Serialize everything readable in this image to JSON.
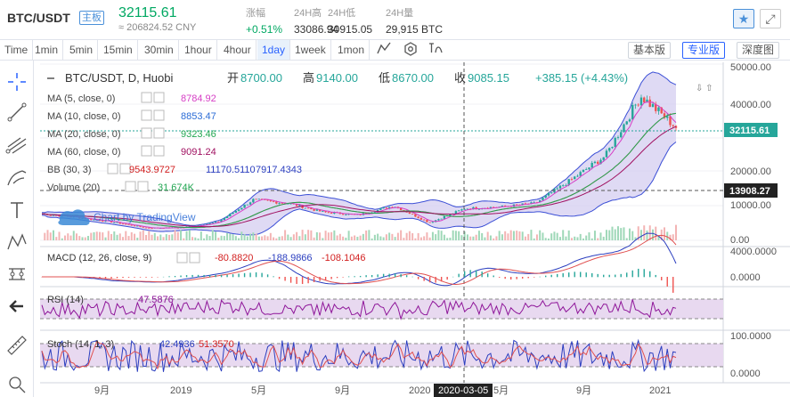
{
  "header": {
    "pair": "BTC/USDT",
    "badge": "主板",
    "price": "32115.61",
    "cny": "≈ 206824.52 CNY",
    "stats": [
      {
        "label": "涨幅",
        "value": "+0.51%"
      },
      {
        "label": "24H高",
        "value": "33086.94"
      },
      {
        "label": "24H低",
        "value": "30915.05"
      },
      {
        "label": "24H量",
        "value": "29,915 BTC"
      }
    ]
  },
  "toolbar": {
    "timeframes": [
      "Time",
      "1min",
      "5min",
      "15min",
      "30min",
      "1hour",
      "4hour",
      "1day",
      "1week",
      "1mon"
    ],
    "active_timeframe": "1day",
    "views": [
      "基本版",
      "专业版",
      "深度图"
    ],
    "active_view": "专业版"
  },
  "legend": {
    "title_sep": "BTC/USDT, D, Huobi",
    "open_label": "开",
    "open": "8700.00",
    "high_label": "高",
    "high": "9140.00",
    "low_label": "低",
    "low": "8670.00",
    "close_label": "收",
    "close": "9085.15",
    "change": "+385.15 (+4.43%)",
    "indicators": [
      {
        "name": "MA (5, close, 0)",
        "values": [
          "8784.92"
        ],
        "colors": [
          "#d63ec5"
        ]
      },
      {
        "name": "MA (10, close, 0)",
        "values": [
          "8853.47"
        ],
        "colors": [
          "#2b6cd6"
        ]
      },
      {
        "name": "MA (20, close, 0)",
        "values": [
          "9323.46"
        ],
        "colors": [
          "#21a651"
        ]
      },
      {
        "name": "MA (60, close, 0)",
        "values": [
          "9091.24"
        ],
        "colors": [
          "#a01060"
        ]
      },
      {
        "name": "BB (30, 3)",
        "values": [
          "9543.9727",
          "11170.5110",
          "7917.4343"
        ],
        "colors": [
          "#d21f1f",
          "#2b3ebf",
          "#2b3ebf"
        ]
      },
      {
        "name": "Volume (20)",
        "values": [
          "31.674K"
        ],
        "colors": [
          "#21a651"
        ]
      }
    ],
    "watermark": "Chart by TradingView",
    "macd": {
      "name": "MACD (12, 26, close, 9)",
      "values": [
        "-80.8820",
        "-188.9866",
        "-108.1046"
      ]
    },
    "rsi": {
      "name": "RSI (14)",
      "value": "47.5876"
    },
    "stoch": {
      "name": "Stoch (14, 1, 3)",
      "values": [
        "42.4936",
        "51.3570"
      ]
    }
  },
  "price_axis": {
    "main": [
      "50000.00",
      "40000.00",
      "30000.00",
      "20000.00",
      "10000.00",
      "0.00"
    ],
    "current_label": "32115.61",
    "marker_label": "13908.27",
    "macd": [
      "4000.0000",
      "0.0000"
    ],
    "stoch": [
      "100.0000",
      "0.0000"
    ]
  },
  "time_axis": {
    "labels": [
      "9月",
      "2019",
      "5月",
      "9月",
      "2020",
      "5月",
      "9月",
      "2021"
    ],
    "crosshair_date": "2020-03-05"
  },
  "colors": {
    "up": "#26a69a",
    "down": "#ef5350",
    "accent": "#2962ff",
    "rsi_line": "#8e1599",
    "band_fill": "#cfc5ee"
  },
  "chart_data": {
    "type": "line",
    "title": "BTC/USDT, D, Huobi",
    "timeframe": "1day",
    "x_labels": [
      "9月",
      "2019",
      "5月",
      "9月",
      "2020",
      "5月",
      "9月",
      "2021"
    ],
    "ylim": [
      0,
      50000
    ],
    "approx_close_series": [
      {
        "date": "2018-07",
        "value": 7500
      },
      {
        "date": "2018-09",
        "value": 6500
      },
      {
        "date": "2018-11",
        "value": 5200
      },
      {
        "date": "2018-12",
        "value": 3500
      },
      {
        "date": "2019-02",
        "value": 3600
      },
      {
        "date": "2019-04",
        "value": 5200
      },
      {
        "date": "2019-06",
        "value": 11500
      },
      {
        "date": "2019-08",
        "value": 10500
      },
      {
        "date": "2019-10",
        "value": 8000
      },
      {
        "date": "2019-12",
        "value": 7200
      },
      {
        "date": "2020-02",
        "value": 9800
      },
      {
        "date": "2020-03",
        "value": 5000
      },
      {
        "date": "2020-05",
        "value": 9000
      },
      {
        "date": "2020-07",
        "value": 9500
      },
      {
        "date": "2020-09",
        "value": 10500
      },
      {
        "date": "2020-11",
        "value": 17000
      },
      {
        "date": "2020-12",
        "value": 24000
      },
      {
        "date": "2021-01",
        "value": 41000
      },
      {
        "date": "2021-01",
        "value": 32115
      }
    ],
    "crosshair": {
      "date": "2020-03-05",
      "open": 8700,
      "high": 9140,
      "low": 8670,
      "close": 9085.15
    }
  }
}
